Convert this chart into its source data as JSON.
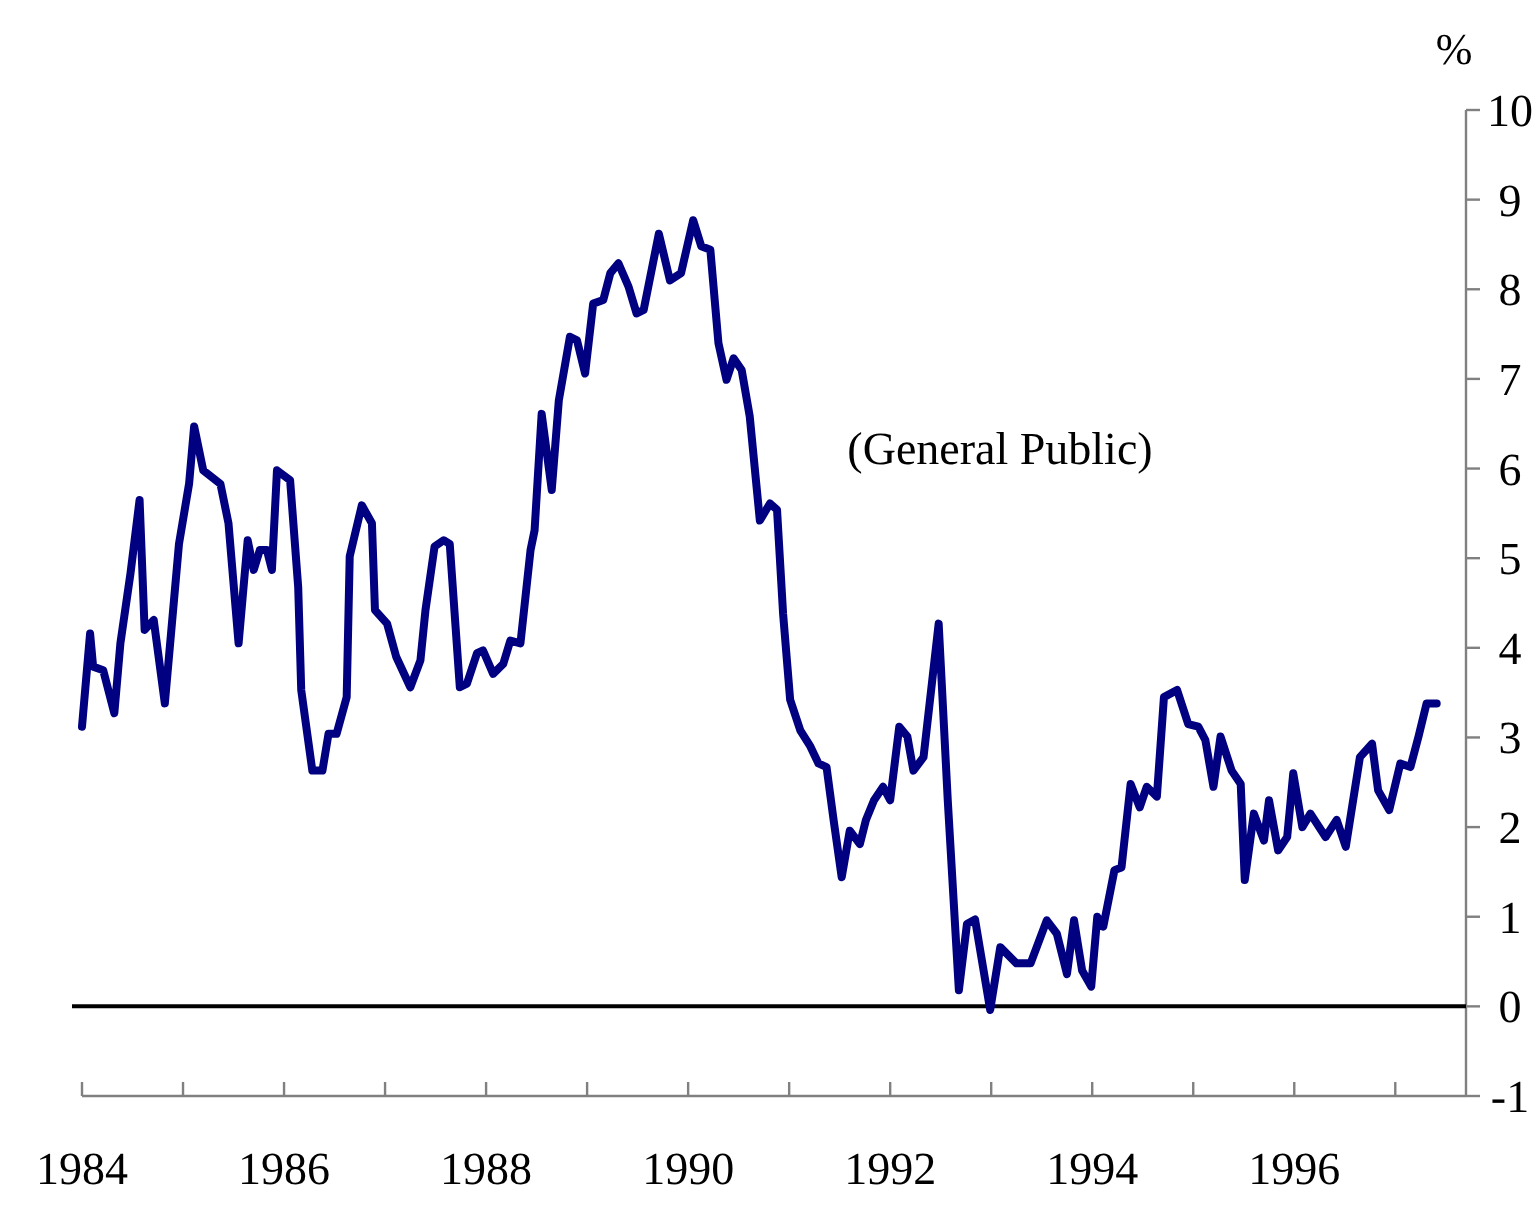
{
  "chart_data": {
    "type": "line",
    "ylabel": "%",
    "annotations": [
      "(General Public)"
    ],
    "xlim": [
      1984,
      1997.7
    ],
    "xticks": [
      1984,
      {
        "value": 1985,
        "label": null
      },
      1986,
      {
        "value": 1987,
        "label": null
      },
      1988,
      {
        "value": 1989,
        "label": null
      },
      1990,
      {
        "value": 1991,
        "label": null
      },
      1992,
      {
        "value": 1993,
        "label": null
      },
      1994,
      {
        "value": 1995,
        "label": null
      },
      1996,
      {
        "value": 1997,
        "label": null
      }
    ],
    "ylim": [
      -1,
      10
    ],
    "yticks": [
      -1,
      0,
      1,
      2,
      3,
      4,
      5,
      6,
      7,
      8,
      9,
      10
    ],
    "grid": false,
    "marker": "none",
    "line_style": "solid",
    "ref_lines": [
      {
        "axis": "y",
        "value": 0,
        "color": "#000000"
      }
    ],
    "series": [
      {
        "color": "#000080",
        "x": [
          1984.0,
          1984.08,
          1984.11,
          1984.21,
          1984.32,
          1984.38,
          1984.48,
          1984.57,
          1984.62,
          1984.71,
          1984.82,
          1984.96,
          1985.06,
          1985.11,
          1985.2,
          1985.37,
          1985.45,
          1985.55,
          1985.64,
          1985.7,
          1985.76,
          1985.83,
          1985.88,
          1985.93,
          1986.06,
          1986.14,
          1986.17,
          1986.28,
          1986.38,
          1986.44,
          1986.52,
          1986.62,
          1986.65,
          1986.77,
          1986.87,
          1986.9,
          1987.02,
          1987.11,
          1987.25,
          1987.35,
          1987.4,
          1987.49,
          1987.58,
          1987.64,
          1987.74,
          1987.81,
          1987.91,
          1987.97,
          1988.07,
          1988.17,
          1988.24,
          1988.34,
          1988.44,
          1988.48,
          1988.55,
          1988.65,
          1988.72,
          1988.83,
          1988.9,
          1988.98,
          1989.06,
          1989.16,
          1989.23,
          1989.31,
          1989.41,
          1989.49,
          1989.56,
          1989.71,
          1989.82,
          1989.93,
          1990.05,
          1990.13,
          1990.22,
          1990.3,
          1990.38,
          1990.45,
          1990.53,
          1990.61,
          1990.71,
          1990.81,
          1990.88,
          1990.94,
          1991.01,
          1991.11,
          1991.21,
          1991.29,
          1991.37,
          1991.44,
          1991.52,
          1991.6,
          1991.7,
          1991.76,
          1991.84,
          1991.93,
          1992.0,
          1992.09,
          1992.17,
          1992.23,
          1992.33,
          1992.48,
          1992.57,
          1992.68,
          1992.76,
          1992.84,
          1992.99,
          1993.09,
          1993.25,
          1993.39,
          1993.55,
          1993.65,
          1993.75,
          1993.82,
          1993.9,
          1993.99,
          1994.05,
          1994.11,
          1994.22,
          1994.29,
          1994.38,
          1994.47,
          1994.54,
          1994.64,
          1994.71,
          1994.84,
          1994.95,
          1995.05,
          1995.12,
          1995.2,
          1995.27,
          1995.38,
          1995.47,
          1995.51,
          1995.6,
          1995.7,
          1995.75,
          1995.84,
          1995.93,
          1995.99,
          1996.08,
          1996.16,
          1996.31,
          1996.42,
          1996.51,
          1996.65,
          1996.77,
          1996.83,
          1996.94,
          1997.05,
          1997.15,
          1997.23,
          1997.31,
          1997.41
        ],
        "values": [
          3.12,
          4.16,
          3.79,
          3.75,
          3.27,
          4.05,
          4.83,
          5.65,
          4.2,
          4.31,
          3.38,
          5.16,
          5.83,
          6.47,
          5.98,
          5.83,
          5.39,
          4.05,
          5.2,
          4.87,
          5.09,
          5.09,
          4.87,
          5.98,
          5.87,
          4.68,
          3.53,
          2.63,
          2.63,
          3.04,
          3.04,
          3.45,
          5.02,
          5.59,
          5.39,
          4.42,
          4.27,
          3.9,
          3.56,
          3.86,
          4.42,
          5.13,
          5.2,
          5.16,
          3.56,
          3.6,
          3.94,
          3.97,
          3.71,
          3.82,
          4.08,
          4.05,
          5.09,
          5.31,
          6.61,
          5.76,
          6.76,
          7.47,
          7.43,
          7.06,
          7.84,
          7.88,
          8.18,
          8.29,
          8.03,
          7.73,
          7.77,
          8.62,
          8.1,
          8.18,
          8.77,
          8.48,
          8.44,
          7.4,
          6.99,
          7.23,
          7.1,
          6.58,
          5.42,
          5.61,
          5.54,
          4.38,
          3.42,
          3.08,
          2.9,
          2.71,
          2.67,
          2.08,
          1.44,
          1.96,
          1.81,
          2.08,
          2.3,
          2.45,
          2.3,
          3.12,
          3.01,
          2.63,
          2.78,
          4.27,
          2.3,
          0.18,
          0.92,
          0.97,
          -0.04,
          0.66,
          0.48,
          0.48,
          0.96,
          0.81,
          0.36,
          0.96,
          0.4,
          0.22,
          1.0,
          0.89,
          1.52,
          1.55,
          2.48,
          2.22,
          2.45,
          2.34,
          3.45,
          3.53,
          3.15,
          3.12,
          2.97,
          2.45,
          3.01,
          2.63,
          2.48,
          1.41,
          2.15,
          1.85,
          2.3,
          1.74,
          1.89,
          2.6,
          2.0,
          2.15,
          1.89,
          2.08,
          1.78,
          2.78,
          2.93,
          2.41,
          2.19,
          2.71,
          2.67,
          3.01,
          3.38,
          3.38
        ]
      }
    ]
  }
}
